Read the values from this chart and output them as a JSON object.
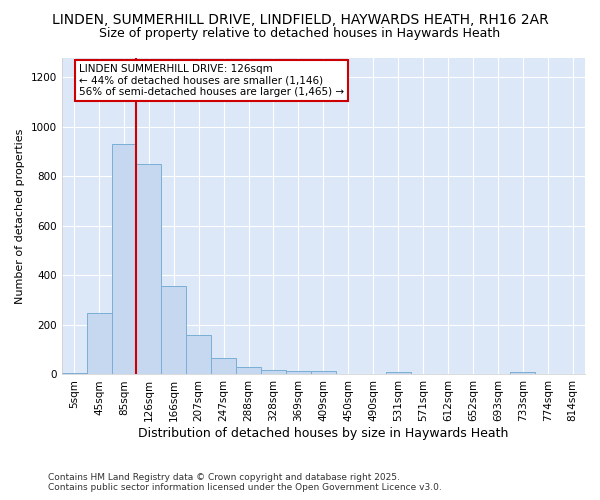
{
  "title_line1": "LINDEN, SUMMERHILL DRIVE, LINDFIELD, HAYWARDS HEATH, RH16 2AR",
  "title_line2": "Size of property relative to detached houses in Haywards Heath",
  "xlabel": "Distribution of detached houses by size in Haywards Heath",
  "ylabel": "Number of detached properties",
  "categories": [
    "5sqm",
    "45sqm",
    "85sqm",
    "126sqm",
    "166sqm",
    "207sqm",
    "247sqm",
    "288sqm",
    "328sqm",
    "369sqm",
    "409sqm",
    "450sqm",
    "490sqm",
    "531sqm",
    "571sqm",
    "612sqm",
    "652sqm",
    "693sqm",
    "733sqm",
    "774sqm",
    "814sqm"
  ],
  "values": [
    5,
    248,
    930,
    848,
    358,
    158,
    65,
    30,
    18,
    12,
    12,
    0,
    0,
    8,
    0,
    0,
    0,
    0,
    8,
    0,
    0
  ],
  "bar_color": "#c5d8f0",
  "bar_edge_color": "#7aaed6",
  "vline_x_index": 3,
  "vline_color": "#cc0000",
  "ylim": [
    0,
    1280
  ],
  "yticks": [
    0,
    200,
    400,
    600,
    800,
    1000,
    1200
  ],
  "annotation_title": "LINDEN SUMMERHILL DRIVE: 126sqm",
  "annotation_line1": "← 44% of detached houses are smaller (1,146)",
  "annotation_line2": "56% of semi-detached houses are larger (1,465) →",
  "annotation_box_color": "#cc0000",
  "footer_line1": "Contains HM Land Registry data © Crown copyright and database right 2025.",
  "footer_line2": "Contains public sector information licensed under the Open Government Licence v3.0.",
  "bg_color": "#ffffff",
  "plot_bg_color": "#dce8f8",
  "grid_color": "#ffffff",
  "title1_fontsize": 10,
  "title2_fontsize": 9,
  "ylabel_fontsize": 8,
  "xlabel_fontsize": 9,
  "tick_fontsize": 7.5,
  "annotation_fontsize": 7.5,
  "footer_fontsize": 6.5
}
